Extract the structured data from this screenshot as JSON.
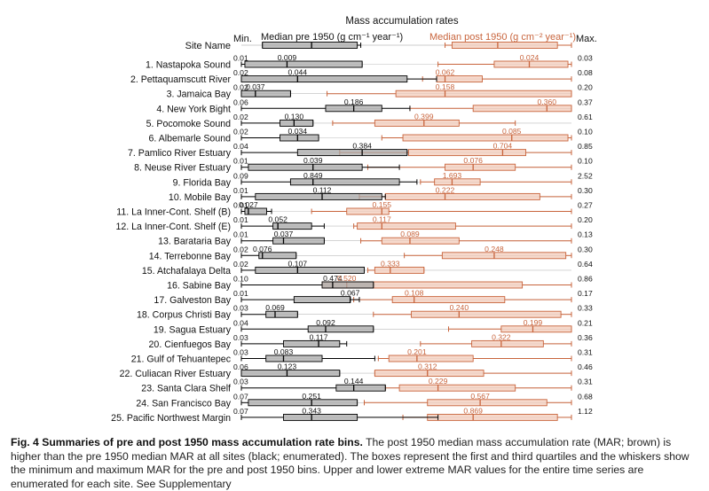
{
  "chart_data": {
    "type": "boxplot",
    "title": "Mass accumulation rates",
    "header_site": "Site Name",
    "header_min": "Min.",
    "header_max": "Max.",
    "header_pre": "Median pre 1950 (g cm⁻¹ year⁻¹)",
    "header_post": "Median post 1950 (g cm⁻² year⁻¹)",
    "series": [
      {
        "name": "Median pre 1950",
        "color": "#000000",
        "fill": "#a6a6a6"
      },
      {
        "name": "Median post 1950",
        "color": "#c8643c",
        "fill": "#f3cbb8"
      }
    ],
    "sites": [
      {
        "name": "1. Nastapoka Sound",
        "min_label": "0.01",
        "max_label": "0.03",
        "pre_median": "0.009",
        "post_median": "0.024",
        "pre": [
          0.0,
          0.005,
          0.065,
          0.172,
          0.172
        ],
        "post": [
          0.28,
          0.36,
          0.41,
          0.465,
          0.47
        ]
      },
      {
        "name": "2. Pettaquamscutt River",
        "min_label": "0.02",
        "max_label": "0.08",
        "pre_median": "0.044",
        "post_median": "0.062",
        "pre": [
          0.0,
          0.0,
          0.08,
          0.236,
          0.278
        ],
        "post": [
          0.258,
          0.278,
          0.29,
          0.343,
          0.47
        ]
      },
      {
        "name": "3. Jamaica Bay",
        "min_label": "0.02",
        "max_label": "0.20",
        "pre_median": "0.037",
        "post_median": "0.158",
        "pre": [
          0.0,
          0.0,
          0.02,
          0.07,
          0.07
        ],
        "post": [
          0.122,
          0.22,
          0.29,
          0.47,
          0.47
        ]
      },
      {
        "name": "4. New York Bight",
        "min_label": "0.06",
        "max_label": "0.37",
        "pre_median": "0.186",
        "post_median": "0.360",
        "pre": [
          0.0,
          0.12,
          0.16,
          0.2,
          0.24
        ],
        "post": [
          0.24,
          0.33,
          0.435,
          0.47,
          0.47
        ]
      },
      {
        "name": "5. Pocomoke Sound",
        "min_label": "0.02",
        "max_label": "0.61",
        "pre_median": "0.130",
        "post_median": "0.399",
        "pre": [
          0.0,
          0.055,
          0.075,
          0.102,
          0.102
        ],
        "post": [
          0.13,
          0.19,
          0.26,
          0.31,
          0.39
        ]
      },
      {
        "name": "6. Albemarle Sound",
        "min_label": "0.02",
        "max_label": "0.10",
        "pre_median": "0.034",
        "post_median": "0.085",
        "pre": [
          0.0,
          0.055,
          0.08,
          0.11,
          0.11
        ],
        "post": [
          0.2,
          0.23,
          0.385,
          0.465,
          0.47
        ]
      },
      {
        "name": "7. Pamlico River Estuary",
        "min_label": "0.04",
        "max_label": "0.85",
        "pre_median": "0.384",
        "post_median": "0.704",
        "pre": [
          0.0,
          0.08,
          0.172,
          0.236,
          0.236
        ],
        "post": [
          0.14,
          0.238,
          0.372,
          0.405,
          0.47
        ]
      },
      {
        "name": "8. Neuse River Estuary",
        "min_label": "0.01",
        "max_label": "0.10",
        "pre_median": "0.039",
        "post_median": "0.076",
        "pre": [
          0.0,
          0.01,
          0.102,
          0.172,
          0.225
        ],
        "post": [
          0.18,
          0.29,
          0.33,
          0.39,
          0.47
        ]
      },
      {
        "name": "9. Florida Bay",
        "min_label": "0.09",
        "max_label": "2.52",
        "pre_median": "0.849",
        "post_median": "1.693",
        "pre": [
          0.0,
          0.07,
          0.102,
          0.225,
          0.25
        ],
        "post": [
          0.255,
          0.275,
          0.3,
          0.34,
          0.47
        ]
      },
      {
        "name": "10. Mobile Bay",
        "min_label": "0.01",
        "max_label": "0.30",
        "pre_median": "0.112",
        "post_median": "0.222",
        "pre": [
          0.0,
          0.02,
          0.115,
          0.2,
          0.205
        ],
        "post": [
          0.168,
          0.205,
          0.29,
          0.425,
          0.47
        ]
      },
      {
        "name": "11. La Inner-Cont. Shelf (B)",
        "min_label": "0.01",
        "max_label": "0.27",
        "pre_median": "0.027",
        "post_median": "0.155",
        "pre": [
          0.0,
          0.005,
          0.01,
          0.036,
          0.043
        ],
        "post": [
          0.1,
          0.15,
          0.2,
          0.21,
          0.47
        ]
      },
      {
        "name": "12. La Inner-Cont. Shelf (E)",
        "min_label": "0.01",
        "max_label": "0.20",
        "pre_median": "0.052",
        "post_median": "0.117",
        "pre": [
          0.0,
          0.045,
          0.052,
          0.1,
          0.118
        ],
        "post": [
          0.16,
          0.165,
          0.2,
          0.305,
          0.47
        ]
      },
      {
        "name": "13. Barataria Bay",
        "min_label": "0.01",
        "max_label": "0.13",
        "pre_median": "0.037",
        "post_median": "0.089",
        "pre": [
          0.0,
          0.045,
          0.06,
          0.118,
          0.118
        ],
        "post": [
          0.17,
          0.2,
          0.24,
          0.31,
          0.47
        ]
      },
      {
        "name": "14. Terrebonne Bay",
        "min_label": "0.02",
        "max_label": "0.30",
        "pre_median": "0.076",
        "post_median": "0.248",
        "pre": [
          0.0,
          0.025,
          0.03,
          0.078,
          0.078
        ],
        "post": [
          0.232,
          0.286,
          0.36,
          0.462,
          0.47
        ]
      },
      {
        "name": "15. Atchafalaya Delta",
        "min_label": "0.02",
        "max_label": "0.64",
        "pre_median": "0.107",
        "post_median": "0.333",
        "pre": [
          0.0,
          0.02,
          0.08,
          0.175,
          0.175
        ],
        "post": [
          0.18,
          0.19,
          0.212,
          0.26,
          0.26
        ]
      },
      {
        "name": "16. Sabine Bay",
        "min_label": "0.10",
        "max_label": "0.86",
        "pre_median": "0.474",
        "post_median": "0.520",
        "pre": [
          0.0,
          0.115,
          0.13,
          0.188,
          0.188
        ],
        "post": [
          0.0,
          0.115,
          0.15,
          0.4,
          0.47
        ]
      },
      {
        "name": "17. Galveston Bay",
        "min_label": "0.01",
        "max_label": "0.17",
        "pre_median": "0.067",
        "post_median": "0.108",
        "pre": [
          0.0,
          0.075,
          0.155,
          0.155,
          0.168
        ],
        "post": [
          0.16,
          0.215,
          0.246,
          0.375,
          0.47
        ]
      },
      {
        "name": "18. Corpus Christi Bay",
        "min_label": "0.03",
        "max_label": "0.33",
        "pre_median": "0.069",
        "post_median": "0.240",
        "pre": [
          0.0,
          0.035,
          0.048,
          0.08,
          0.08
        ],
        "post": [
          0.188,
          0.242,
          0.31,
          0.455,
          0.47
        ]
      },
      {
        "name": "19. Sagua Estuary",
        "min_label": "0.04",
        "max_label": "0.21",
        "pre_median": "0.092",
        "post_median": "0.199",
        "pre": [
          0.0,
          0.095,
          0.12,
          0.188,
          0.188
        ],
        "post": [
          0.295,
          0.37,
          0.415,
          0.47,
          0.47
        ]
      },
      {
        "name": "20. Cienfuegos Bay",
        "min_label": "0.03",
        "max_label": "0.36",
        "pre_median": "0.117",
        "post_median": "0.322",
        "pre": [
          0.0,
          0.06,
          0.11,
          0.14,
          0.15
        ],
        "post": [
          0.255,
          0.328,
          0.37,
          0.43,
          0.47
        ]
      },
      {
        "name": "21. Gulf of Tehuantepec",
        "min_label": "0.03",
        "max_label": "0.31",
        "pre_median": "0.083",
        "post_median": "0.201",
        "pre": [
          0.0,
          0.035,
          0.06,
          0.115,
          0.19
        ],
        "post": [
          0.195,
          0.21,
          0.25,
          0.33,
          0.47
        ]
      },
      {
        "name": "22. Culiacan River Estuary",
        "min_label": "0.06",
        "max_label": "0.46",
        "pre_median": "0.123",
        "post_median": "0.312",
        "pre": [
          0.0,
          0.0,
          0.065,
          0.14,
          0.14
        ],
        "post": [
          0.19,
          0.19,
          0.265,
          0.345,
          0.47
        ]
      },
      {
        "name": "23. Santa Clara Shelf",
        "min_label": "0.03",
        "max_label": "0.31",
        "pre_median": "0.144",
        "post_median": "0.229",
        "pre": [
          0.0,
          0.135,
          0.16,
          0.205,
          0.205
        ],
        "post": [
          0.205,
          0.225,
          0.28,
          0.39,
          0.47
        ]
      },
      {
        "name": "24. San Francisco Bay",
        "min_label": "0.07",
        "max_label": "0.68",
        "pre_median": "0.251",
        "post_median": "0.567",
        "pre": [
          0.0,
          0.01,
          0.1,
          0.165,
          0.165
        ],
        "post": [
          0.175,
          0.265,
          0.34,
          0.435,
          0.47
        ]
      },
      {
        "name": "25. Pacific Northwest Margin",
        "min_label": "0.07",
        "max_label": "1.12",
        "pre_median": "0.343",
        "post_median": "0.869",
        "pre": [
          0.0,
          0.06,
          0.1,
          0.165,
          0.28
        ],
        "post": [
          0.23,
          0.265,
          0.33,
          0.45,
          0.47
        ]
      }
    ]
  },
  "caption": {
    "title": "Fig. 4 Summaries of pre and post 1950 mass accumulation rate bins.",
    "body": "The post 1950 median mass accumulation rate (MAR; brown) is higher than the pre 1950 median MAR at all sites (black; enumerated). The boxes represent the first and third quartiles and the whiskers show the minimum and maximum MAR for the pre and post 1950 bins. Upper and lower extreme MAR values for the entire time series are enumerated for each site. See Supplementary"
  }
}
